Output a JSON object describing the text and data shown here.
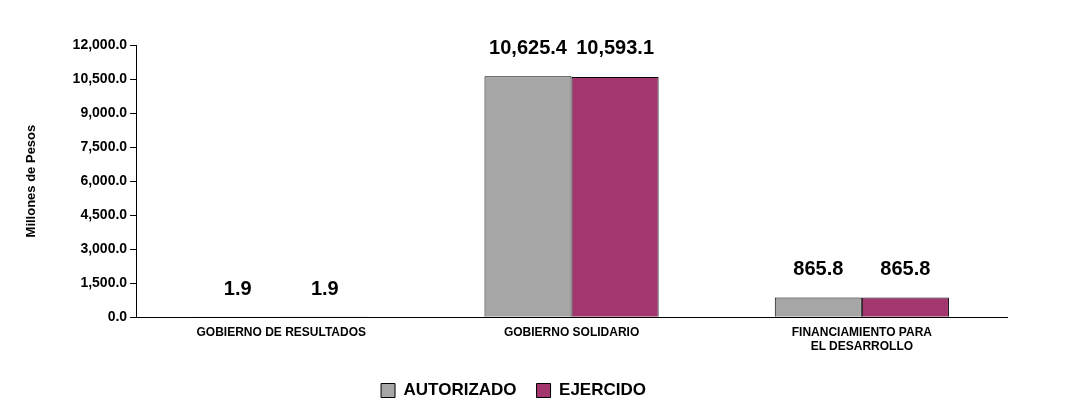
{
  "chart_data": {
    "type": "bar",
    "ylabel": "Millones de Pesos",
    "categories": [
      "GOBIERNO DE RESULTADOS",
      "GOBIERNO SOLIDARIO",
      "FINANCIAMIENTO PARA EL DESARROLLO"
    ],
    "series": [
      {
        "name": "AUTORIZADO",
        "color": "#a6a6a6",
        "values": [
          1.9,
          10625.4,
          865.8
        ],
        "value_labels": [
          "1.9",
          "10,625.4",
          "865.8"
        ]
      },
      {
        "name": "EJERCIDO",
        "color": "#a3356f",
        "values": [
          1.9,
          10593.1,
          865.8
        ],
        "value_labels": [
          "1.9",
          "10,593.1",
          "865.8"
        ]
      }
    ],
    "ylim": [
      0,
      12000
    ],
    "yticks": [
      {
        "value": 0,
        "label": "0.0"
      },
      {
        "value": 1500,
        "label": "1,500.0"
      },
      {
        "value": 3000,
        "label": "3,000.0"
      },
      {
        "value": 4500,
        "label": "4,500.0"
      },
      {
        "value": 6000,
        "label": "6,000.0"
      },
      {
        "value": 7500,
        "label": "7,500.0"
      },
      {
        "value": 9000,
        "label": "9,000.0"
      },
      {
        "value": 10500,
        "label": "10,500.0"
      },
      {
        "value": 12000,
        "label": "12,000.0"
      }
    ],
    "grid": false,
    "legend": "bottom"
  }
}
